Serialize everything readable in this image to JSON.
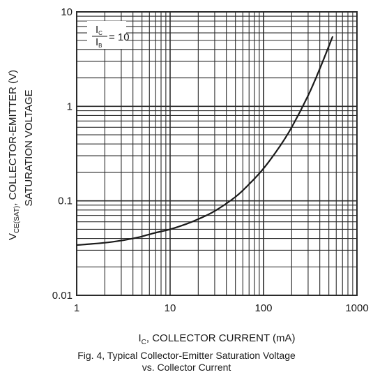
{
  "chart_data": {
    "type": "line",
    "caption": [
      "Fig. 4, Typical Collector-Emitter Saturation Voltage",
      "vs. Collector Current"
    ],
    "xlabel": {
      "main": "I",
      "sub": "C",
      "rest": ", COLLECTOR CURRENT (mA)"
    },
    "ylabel": {
      "line1_main": "V",
      "line1_sub": "CE(SAT)",
      "line1_rest": ", COLLECTOR-EMITTER (V)",
      "line2": "SATURATION VOLTAGE"
    },
    "condition": {
      "num_main": "I",
      "num_sub": "C",
      "den_main": "I",
      "den_sub": "B",
      "value": "= 10"
    },
    "x_scale": "log",
    "y_scale": "log",
    "xlim": [
      1,
      1000
    ],
    "ylim": [
      0.01,
      10
    ],
    "x_ticks": [
      {
        "value": 1,
        "label": "1"
      },
      {
        "value": 10,
        "label": "10"
      },
      {
        "value": 100,
        "label": "100"
      },
      {
        "value": 1000,
        "label": "1000"
      }
    ],
    "y_ticks": [
      {
        "value": 0.01,
        "label": "0.01"
      },
      {
        "value": 0.1,
        "label": "0.1"
      },
      {
        "value": 1,
        "label": "1"
      },
      {
        "value": 10,
        "label": "10"
      }
    ],
    "grid": true,
    "series": [
      {
        "x": [
          1,
          2,
          3,
          4,
          5,
          7,
          10,
          15,
          20,
          30,
          50,
          70,
          100,
          150,
          200,
          300,
          400,
          550
        ],
        "y": [
          0.034,
          0.036,
          0.038,
          0.04,
          0.042,
          0.046,
          0.05,
          0.057,
          0.064,
          0.078,
          0.11,
          0.15,
          0.22,
          0.38,
          0.6,
          1.3,
          2.5,
          5.5
        ]
      }
    ],
    "colors": {
      "grid": "#2a2a2a",
      "curve": "#1a1a1a",
      "text": "#1a1a1a"
    }
  }
}
